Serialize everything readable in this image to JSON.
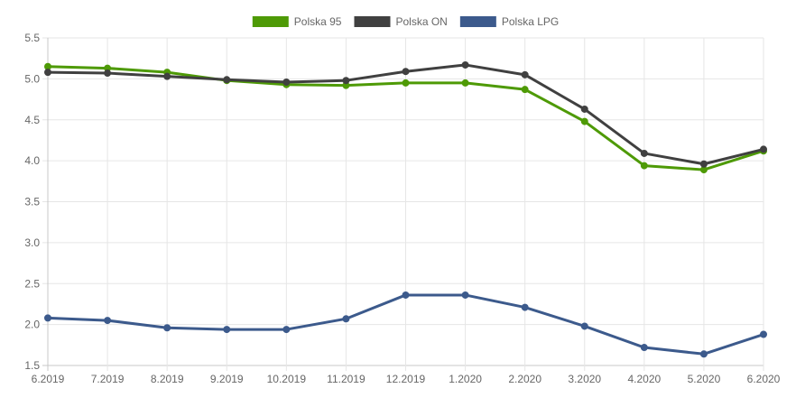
{
  "chart_data": {
    "type": "line",
    "categories": [
      "6.2019",
      "7.2019",
      "8.2019",
      "9.2019",
      "10.2019",
      "11.2019",
      "12.2019",
      "1.2020",
      "2.2020",
      "3.2020",
      "4.2020",
      "5.2020",
      "6.2020"
    ],
    "series": [
      {
        "name": "Polska 95",
        "color": "#4e9a06",
        "values": [
          5.15,
          5.13,
          5.08,
          4.98,
          4.93,
          4.92,
          4.95,
          4.95,
          4.87,
          4.48,
          3.94,
          3.89,
          4.12
        ]
      },
      {
        "name": "Polska ON",
        "color": "#404040",
        "values": [
          5.08,
          5.07,
          5.03,
          4.99,
          4.96,
          4.98,
          5.09,
          5.17,
          5.05,
          4.63,
          4.09,
          3.96,
          4.14
        ]
      },
      {
        "name": "Polska LPG",
        "color": "#3c5a8c",
        "values": [
          2.08,
          2.05,
          1.96,
          1.94,
          1.94,
          2.07,
          2.36,
          2.36,
          2.21,
          1.98,
          1.72,
          1.64,
          1.88
        ]
      }
    ],
    "y_ticks": [
      "1.5",
      "2.0",
      "2.5",
      "3.0",
      "3.5",
      "4.0",
      "4.5",
      "5.0",
      "5.5"
    ],
    "ylim": [
      1.5,
      5.5
    ],
    "grid": true,
    "legend_position": "top-center"
  }
}
